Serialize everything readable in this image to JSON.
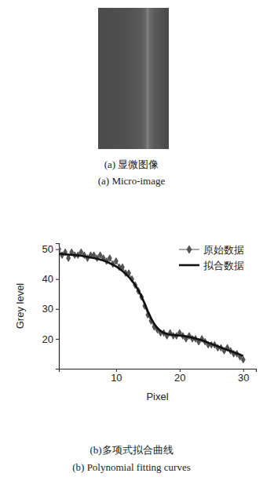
{
  "figure_a": {
    "caption": "(a) 显微图像",
    "caption_en": "(a) Micro-image"
  },
  "chart_data": {
    "type": "line",
    "title": "(b)多项式拟合曲线",
    "subtitle": "(b) Polynomial fitting curves",
    "x_label": "Pixel",
    "y_label": "Grey level",
    "x": [
      1,
      1.5,
      2,
      2.5,
      3,
      3.5,
      4,
      4.5,
      5,
      5.5,
      6,
      6.5,
      7,
      7.5,
      8,
      8.5,
      9,
      9.5,
      10,
      10.5,
      11,
      11.5,
      12,
      12.5,
      13,
      13.5,
      14,
      14.5,
      15,
      15.5,
      16,
      16.5,
      17,
      17.5,
      18,
      18.5,
      19,
      19.5,
      20,
      20.5,
      21,
      21.5,
      22,
      22.5,
      23,
      23.5,
      24,
      24.5,
      25,
      25.5,
      26,
      26.5,
      27,
      27.5,
      28,
      28.5,
      29,
      29.5,
      30
    ],
    "series": [
      {
        "name": "原始数据",
        "color": "#555555",
        "marker": "diamond",
        "line_style": "solid",
        "values": [
          50,
          48,
          49,
          47,
          49,
          48,
          48,
          49,
          48,
          47,
          48,
          48,
          47,
          48,
          47,
          46,
          47,
          45,
          46,
          44,
          44,
          42,
          42,
          40,
          38,
          36,
          34,
          31,
          28,
          26,
          24,
          23,
          22,
          22,
          21,
          22,
          21,
          21,
          22,
          21,
          20,
          21,
          20,
          20,
          19,
          20,
          19,
          18,
          18,
          18,
          17,
          17,
          16,
          17,
          16,
          15,
          15,
          14,
          13
        ]
      },
      {
        "name": "拟合数据",
        "color": "#111111",
        "marker": "none",
        "line_style": "solid",
        "values": [
          48.5,
          48.4,
          48.3,
          48.2,
          48.1,
          48.0,
          47.9,
          47.8,
          47.6,
          47.4,
          47.2,
          47.0,
          46.8,
          46.5,
          46.2,
          45.8,
          45.3,
          44.8,
          44.2,
          43.5,
          42.7,
          41.8,
          40.7,
          39.4,
          38.0,
          36.3,
          34.2,
          31.8,
          29.2,
          26.9,
          25.0,
          23.6,
          22.6,
          22.0,
          21.6,
          21.4,
          21.3,
          21.2,
          21.1,
          21.0,
          20.8,
          20.6,
          20.4,
          20.1,
          19.8,
          19.5,
          19.1,
          18.7,
          18.3,
          17.9,
          17.5,
          17.1,
          16.7,
          16.3,
          15.9,
          15.5,
          15.1,
          14.7,
          14.3
        ]
      }
    ],
    "xlim": [
      1,
      32
    ],
    "xticks": [
      10,
      20,
      30
    ],
    "ylim": [
      10,
      52
    ],
    "yticks": [
      20,
      30,
      40,
      50
    ],
    "legend": "upper right"
  }
}
